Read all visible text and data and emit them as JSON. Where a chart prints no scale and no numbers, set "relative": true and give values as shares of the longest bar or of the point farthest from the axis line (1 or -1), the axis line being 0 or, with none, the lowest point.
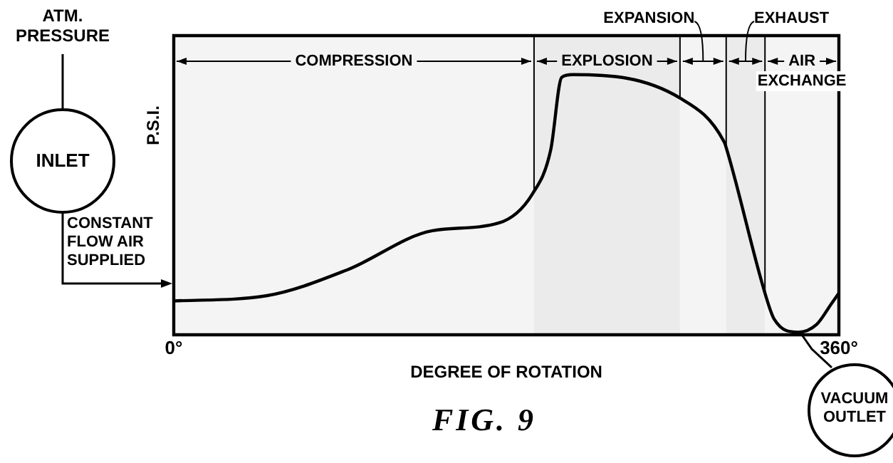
{
  "chart_data": {
    "type": "line",
    "title": "FIG. 9",
    "xlabel": "DEGREE OF ROTATION",
    "ylabel": "P.S.I.",
    "annotations": [
      "ATM. PRESSURE",
      "INLET",
      "CONSTANT FLOW AIR SUPPLIED",
      "VACUUM OUTLET"
    ],
    "x": [
      0,
      50,
      94,
      140,
      176,
      194,
      204,
      210,
      216,
      274,
      298,
      299,
      320,
      325,
      338,
      348,
      356,
      360
    ],
    "series": [
      {
        "color": "#000000",
        "values": [
          0.13,
          0.15,
          0.25,
          0.4,
          0.43,
          0.54,
          0.71,
          0.99,
          1,
          0.91,
          0.74,
          0.72,
          0.16,
          0.06,
          0.01,
          0.04,
          0.12,
          0.16
        ]
      }
    ],
    "relative": true,
    "xlim": [
      0,
      360
    ],
    "xticks": [
      {
        "value": 0,
        "label": "0°"
      },
      {
        "value": 360,
        "label": "360°"
      }
    ],
    "bands": [
      {
        "axis": "x",
        "from": 0,
        "to": 195,
        "label": "COMPRESSION",
        "color": "#f4f4f4"
      },
      {
        "axis": "x",
        "from": 195,
        "to": 274,
        "label": "EXPLOSION",
        "color": "#ebebeb"
      },
      {
        "axis": "x",
        "from": 274,
        "to": 299,
        "label": "EXPANSION",
        "color": "#f4f4f4"
      },
      {
        "axis": "x",
        "from": 299,
        "to": 320,
        "label": "EXHAUST",
        "color": "#ebebeb"
      },
      {
        "axis": "x",
        "from": 320,
        "to": 360,
        "label": "AIR EXCHANGE",
        "color": "#f4f4f4"
      }
    ],
    "ref_lines": [
      {
        "axis": "x",
        "value": 195
      },
      {
        "axis": "x",
        "value": 274
      },
      {
        "axis": "x",
        "value": 299
      },
      {
        "axis": "x",
        "value": 320
      }
    ],
    "legend": false,
    "marker": "none",
    "line_style": "solid"
  }
}
